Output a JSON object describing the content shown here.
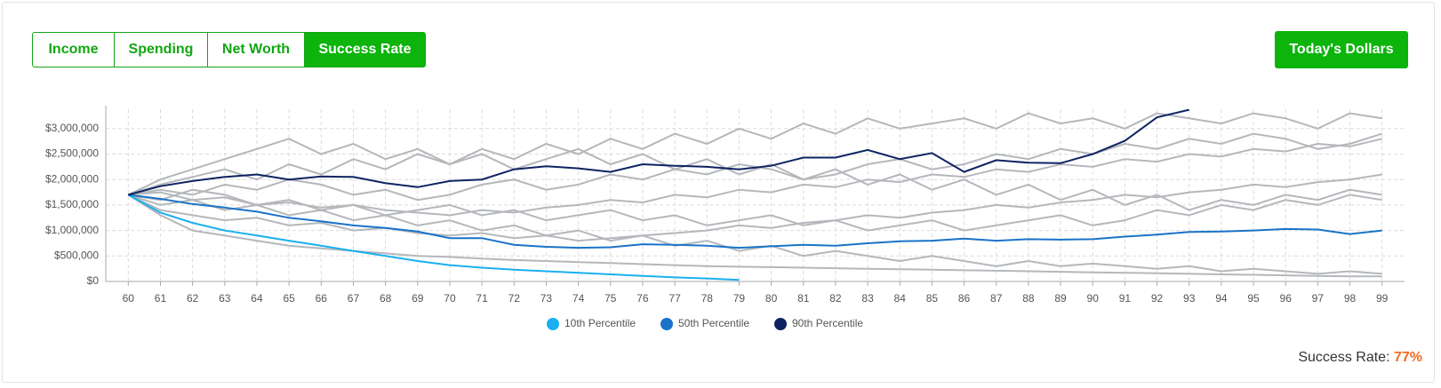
{
  "tabs": [
    "Income",
    "Spending",
    "Net Worth",
    "Success Rate"
  ],
  "active_tab": 3,
  "dollars_button": "Today's Dollars",
  "success_label": "Success Rate:",
  "success_value": "77%",
  "chart_data": {
    "type": "line",
    "x": [
      60,
      61,
      62,
      63,
      64,
      65,
      66,
      67,
      68,
      69,
      70,
      71,
      72,
      73,
      74,
      75,
      76,
      77,
      78,
      79,
      80,
      81,
      82,
      83,
      84,
      85,
      86,
      87,
      88,
      89,
      90,
      91,
      92,
      93,
      94,
      95,
      96,
      97,
      98,
      99
    ],
    "xlim": [
      59.3,
      99.7
    ],
    "xticks": [
      60,
      61,
      62,
      63,
      64,
      65,
      66,
      67,
      68,
      69,
      70,
      71,
      72,
      73,
      74,
      75,
      76,
      77,
      78,
      79,
      80,
      81,
      82,
      83,
      84,
      85,
      86,
      87,
      88,
      89,
      90,
      91,
      92,
      93,
      94,
      95,
      96,
      97,
      98,
      99
    ],
    "ylim": [
      0,
      3380000
    ],
    "yticks": [
      {
        "value": 0,
        "label": "$0"
      },
      {
        "value": 500000,
        "label": "$500,000"
      },
      {
        "value": 1000000,
        "label": "$1,000,000"
      },
      {
        "value": 1500000,
        "label": "$1,500,000"
      },
      {
        "value": 2000000,
        "label": "$2,000,000"
      },
      {
        "value": 2500000,
        "label": "$2,500,000"
      },
      {
        "value": 3000000,
        "label": "$3,000,000"
      }
    ],
    "grid": true,
    "simulation_color": "#b4b7bb",
    "simulations": [
      [
        1700000,
        1900000,
        2050000,
        2200000,
        2000000,
        2300000,
        2100000,
        2400000,
        2200000,
        2500000,
        2300000,
        2600000,
        2400000,
        2700000,
        2500000,
        2800000,
        2600000,
        2900000,
        2700000,
        3000000,
        2800000,
        3100000,
        2900000,
        3200000,
        3000000,
        3100000,
        3200000,
        3000000,
        3300000,
        3100000,
        3200000,
        3000000,
        3300000,
        3200000,
        3100000,
        3300000,
        3200000,
        3000000,
        3300000,
        3200000
      ],
      [
        1700000,
        1500000,
        1600000,
        1400000,
        1500000,
        1300000,
        1400000,
        1200000,
        1300000,
        1100000,
        1200000,
        1000000,
        1100000,
        900000,
        1000000,
        800000,
        900000,
        700000,
        800000,
        600000,
        700000,
        500000,
        600000,
        500000,
        400000,
        500000,
        400000,
        300000,
        400000,
        300000,
        350000,
        300000,
        250000,
        300000,
        200000,
        250000,
        200000,
        150000,
        200000,
        150000
      ],
      [
        1700000,
        1800000,
        1700000,
        1900000,
        1800000,
        2000000,
        1900000,
        1700000,
        1800000,
        1600000,
        1700000,
        1900000,
        2000000,
        1800000,
        1900000,
        2100000,
        2000000,
        2200000,
        2100000,
        2300000,
        2200000,
        2000000,
        2100000,
        2300000,
        2400000,
        2200000,
        2300000,
        2500000,
        2400000,
        2600000,
        2500000,
        2700000,
        2600000,
        2800000,
        2700000,
        2900000,
        2800000,
        2600000,
        2700000,
        2900000
      ],
      [
        1700000,
        1400000,
        1300000,
        1200000,
        1250000,
        1100000,
        1150000,
        1000000,
        1050000,
        950000,
        900000,
        950000,
        850000,
        900000,
        800000,
        850000,
        900000,
        950000,
        1000000,
        1100000,
        1050000,
        1150000,
        1200000,
        1300000,
        1250000,
        1350000,
        1400000,
        1500000,
        1450000,
        1550000,
        1600000,
        1700000,
        1650000,
        1750000,
        1800000,
        1900000,
        1850000,
        1950000,
        2000000,
        2100000
      ],
      [
        1700000,
        1600000,
        1800000,
        1700000,
        1500000,
        1600000,
        1400000,
        1500000,
        1300000,
        1400000,
        1500000,
        1300000,
        1400000,
        1200000,
        1300000,
        1400000,
        1200000,
        1300000,
        1100000,
        1200000,
        1300000,
        1100000,
        1200000,
        1000000,
        1100000,
        1200000,
        1000000,
        1100000,
        1200000,
        1300000,
        1100000,
        1200000,
        1400000,
        1300000,
        1500000,
        1400000,
        1600000,
        1500000,
        1700000,
        1600000
      ],
      [
        1700000,
        2000000,
        2200000,
        2400000,
        2600000,
        2800000,
        2500000,
        2700000,
        2400000,
        2600000,
        2300000,
        2500000,
        2200000,
        2400000,
        2600000,
        2300000,
        2500000,
        2200000,
        2400000,
        2100000,
        2300000,
        2000000,
        2200000,
        1900000,
        2100000,
        1800000,
        2000000,
        1700000,
        1900000,
        1600000,
        1800000,
        1500000,
        1700000,
        1400000,
        1600000,
        1500000,
        1700000,
        1600000,
        1800000,
        1700000
      ],
      [
        1700000,
        1300000,
        1000000,
        900000,
        800000,
        700000,
        650000,
        600000,
        550000,
        500000,
        480000,
        450000,
        420000,
        400000,
        380000,
        360000,
        340000,
        320000,
        300000,
        290000,
        280000,
        270000,
        260000,
        250000,
        240000,
        230000,
        220000,
        210000,
        200000,
        190000,
        180000,
        170000,
        160000,
        150000,
        140000,
        130000,
        120000,
        110000,
        100000,
        100000
      ],
      [
        1700000,
        1750000,
        1600000,
        1650000,
        1500000,
        1550000,
        1450000,
        1500000,
        1400000,
        1350000,
        1300000,
        1400000,
        1350000,
        1450000,
        1500000,
        1600000,
        1550000,
        1700000,
        1650000,
        1800000,
        1750000,
        1900000,
        1850000,
        2000000,
        1950000,
        2100000,
        2050000,
        2200000,
        2150000,
        2300000,
        2250000,
        2400000,
        2350000,
        2500000,
        2450000,
        2600000,
        2550000,
        2700000,
        2650000,
        2800000
      ]
    ],
    "series": [
      {
        "name": "10th Percentile",
        "color": "#1ab0ef",
        "values": [
          1700000,
          1350000,
          1150000,
          1000000,
          900000,
          800000,
          700000,
          600000,
          500000,
          400000,
          320000,
          270000,
          230000,
          200000,
          170000,
          140000,
          110000,
          80000,
          60000,
          30000,
          null,
          null,
          null,
          null,
          null,
          null,
          null,
          null,
          null,
          null,
          null,
          null,
          null,
          null,
          null,
          null,
          null,
          null,
          null,
          null
        ]
      },
      {
        "name": "50th Percentile",
        "color": "#1a73c7",
        "values": [
          1700000,
          1620000,
          1520000,
          1450000,
          1370000,
          1250000,
          1180000,
          1100000,
          1050000,
          980000,
          850000,
          850000,
          720000,
          680000,
          660000,
          670000,
          730000,
          720000,
          700000,
          660000,
          690000,
          720000,
          700000,
          750000,
          790000,
          800000,
          840000,
          800000,
          830000,
          820000,
          830000,
          880000,
          920000,
          970000,
          980000,
          1000000,
          1030000,
          1020000,
          930000,
          1000000
        ]
      },
      {
        "name": "90th Percentile",
        "color": "#0c2461",
        "values": [
          1700000,
          1870000,
          1970000,
          2050000,
          2100000,
          2000000,
          2060000,
          2050000,
          1930000,
          1850000,
          1970000,
          2000000,
          2200000,
          2260000,
          2220000,
          2150000,
          2300000,
          2270000,
          2250000,
          2200000,
          2270000,
          2430000,
          2430000,
          2580000,
          2400000,
          2520000,
          2150000,
          2380000,
          2330000,
          2320000,
          2500000,
          2760000,
          3220000,
          3370000,
          null,
          null,
          null,
          null,
          null,
          null
        ]
      }
    ]
  }
}
